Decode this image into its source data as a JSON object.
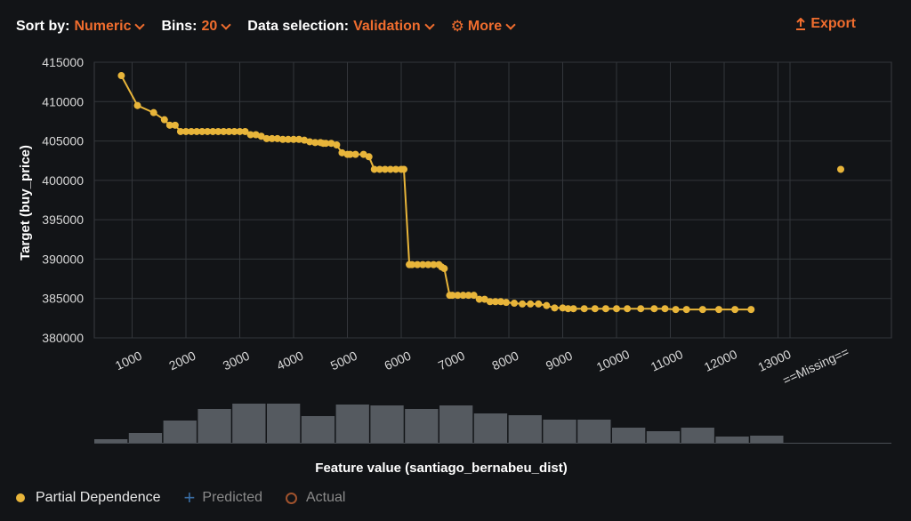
{
  "toolbar": {
    "sort_label": "Sort by:",
    "sort_value": "Numeric",
    "bins_label": "Bins:",
    "bins_value": "20",
    "data_label": "Data selection:",
    "data_value": "Validation",
    "more_label": "More",
    "export_label": "Export"
  },
  "legend": {
    "partial": "Partial Dependence",
    "predicted": "Predicted",
    "actual": "Actual"
  },
  "colors": {
    "accent": "#f06d2e",
    "line": "#e8b53a",
    "bar": "#555a60"
  },
  "chart_data": {
    "type": "line",
    "ylabel": "Target (buy_price)",
    "xlabel": "Feature value (santiago_bernabeu_dist)",
    "ylim": [
      380000,
      415000
    ],
    "xlim": [
      0,
      13500
    ],
    "yticks": [
      380000,
      385000,
      390000,
      395000,
      400000,
      405000,
      410000,
      415000
    ],
    "xticks": [
      1000,
      2000,
      3000,
      4000,
      5000,
      6000,
      7000,
      8000,
      9000,
      10000,
      11000,
      12000,
      13000
    ],
    "missing_label": "==Missing==",
    "missing_value": 401400,
    "series": [
      {
        "name": "Partial Dependence",
        "x": [
          800,
          1100,
          1400,
          1600,
          1700,
          1800,
          1900,
          2000,
          2100,
          2200,
          2300,
          2400,
          2500,
          2600,
          2700,
          2800,
          2900,
          3000,
          3100,
          3200,
          3300,
          3400,
          3500,
          3600,
          3700,
          3800,
          3900,
          4000,
          4100,
          4200,
          4300,
          4400,
          4500,
          4550,
          4600,
          4700,
          4800,
          4900,
          5000,
          5050,
          5150,
          5300,
          5400,
          5500,
          5600,
          5700,
          5800,
          5900,
          6000,
          6050,
          6150,
          6200,
          6300,
          6400,
          6500,
          6600,
          6700,
          6750,
          6800,
          6900,
          6950,
          7050,
          7150,
          7250,
          7350,
          7450,
          7550,
          7650,
          7750,
          7850,
          7950,
          8100,
          8250,
          8400,
          8550,
          8700,
          8850,
          9000,
          9100,
          9200,
          9400,
          9600,
          9800,
          10000,
          10200,
          10450,
          10700,
          10900,
          11100,
          11300,
          11600,
          11900,
          12200,
          12500
        ],
        "values": [
          413300,
          409500,
          408600,
          407700,
          407000,
          407000,
          406200,
          406200,
          406200,
          406200,
          406200,
          406200,
          406200,
          406200,
          406200,
          406200,
          406200,
          406200,
          406200,
          405800,
          405800,
          405600,
          405300,
          405300,
          405300,
          405200,
          405200,
          405200,
          405200,
          405100,
          404900,
          404800,
          404800,
          404700,
          404700,
          404700,
          404500,
          403500,
          403300,
          403300,
          403300,
          403300,
          403000,
          401400,
          401400,
          401400,
          401400,
          401400,
          401400,
          401400,
          389300,
          389300,
          389300,
          389300,
          389300,
          389300,
          389300,
          389000,
          388800,
          385400,
          385400,
          385400,
          385400,
          385400,
          385400,
          384900,
          384900,
          384600,
          384600,
          384600,
          384500,
          384400,
          384300,
          384300,
          384300,
          384100,
          383800,
          383800,
          383700,
          383700,
          383700,
          383700,
          383700,
          383700,
          383700,
          383700,
          383700,
          383700,
          383600,
          383600,
          383600,
          383600,
          383600,
          383600
        ]
      }
    ],
    "histogram": {
      "bins": 20,
      "values": [
        4,
        11,
        25,
        38,
        44,
        44,
        30,
        43,
        42,
        38,
        42,
        33,
        31,
        26,
        26,
        17,
        13,
        17,
        7,
        8
      ]
    }
  }
}
